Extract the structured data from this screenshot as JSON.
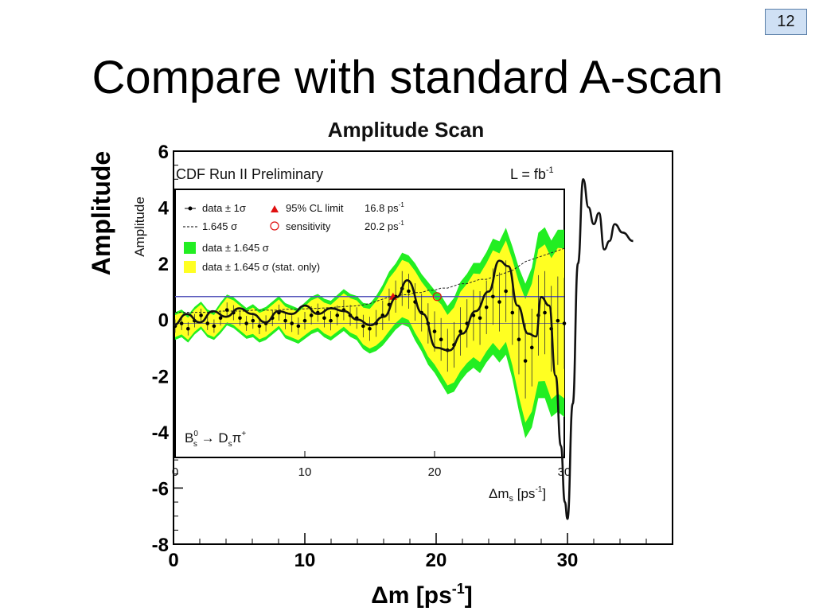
{
  "slide": {
    "page_number": "12",
    "title": "Compare with standard A-scan"
  },
  "chart_data": [
    {
      "type": "line",
      "title": "Amplitude Scan",
      "ylabel": "Amplitude",
      "xlabel_prefix": "Δm [ps",
      "xlabel_sup": "-1",
      "xlabel_suffix": "]",
      "xlim": [
        0,
        38
      ],
      "ylim": [
        -8,
        6
      ],
      "x_ticks": [
        "0",
        "10",
        "20",
        "30"
      ],
      "y_ticks": [
        "6",
        "4",
        "2",
        "0",
        "-2",
        "-4",
        "-6",
        "-8"
      ],
      "series": [
        {
          "color": "#111111",
          "x": [
            0,
            1,
            2,
            3,
            4,
            5,
            6,
            7,
            8,
            9,
            10,
            11,
            12,
            13,
            14,
            15,
            16,
            17,
            17.8,
            19,
            20,
            21,
            22,
            23,
            24,
            24.8,
            25.5,
            26.2,
            27,
            27.6,
            28,
            28.6,
            29.1,
            29.5,
            29.8,
            30,
            30.4,
            30.8,
            31.2,
            31.6,
            32,
            32.4,
            32.8,
            33.2,
            33.6,
            34.2,
            35
          ],
          "y": [
            -0.2,
            0.2,
            -0.1,
            0.3,
            0.1,
            0.4,
            0.2,
            -0.1,
            0.3,
            0.2,
            0.5,
            0.2,
            0.4,
            0.3,
            0.0,
            -0.2,
            0.1,
            0.8,
            1.4,
            0.2,
            -1.0,
            -1.1,
            -0.5,
            0.3,
            1.0,
            2.1,
            1.9,
            0.5,
            -0.5,
            -0.6,
            0.8,
            0.5,
            -2.0,
            -4.5,
            -6.5,
            -7.1,
            -3.0,
            2.0,
            5.0,
            4.0,
            3.4,
            3.8,
            2.5,
            2.8,
            3.4,
            3.1,
            2.8
          ]
        }
      ]
    },
    {
      "type": "scatter",
      "header_left": "CDF Run II Preliminary",
      "header_right_prefix": "L = fb",
      "header_right_sup": "-1",
      "ylabel": "Amplitude",
      "xlabel_prefix": "Δm",
      "xlabel_sub": "s",
      "xlabel_mid": " [ps",
      "xlabel_sup": "-1",
      "xlabel_suffix": "]",
      "xlim": [
        0,
        30
      ],
      "ylim": [
        -5,
        5
      ],
      "x_ticks": [
        "0",
        "10",
        "20",
        "30"
      ],
      "reference_line": 1,
      "annotation": {
        "text": "B",
        "sup": "0",
        "sub": "s",
        "arrow": " → D",
        "sub2": "s",
        "tail": "π",
        "sup2": "+"
      },
      "legend": {
        "placement": "top-left",
        "entries": [
          {
            "label": "data ± 1σ",
            "symbol": "dot"
          },
          {
            "label": "95% CL limit",
            "value": "16.8 ps",
            "sup": "-1",
            "symbol": "triangle",
            "color": "#e01010"
          },
          {
            "label": "1.645 σ",
            "symbol": "dashed"
          },
          {
            "label": "sensitivity",
            "value": "20.2 ps",
            "sup": "-1",
            "symbol": "circle",
            "color": "#e01010"
          },
          {
            "label": "data ± 1.645 σ",
            "symbol": "box",
            "color": "#22ee22"
          },
          {
            "label": "data ± 1.645 σ (stat. only)",
            "symbol": "box",
            "color": "#ffff22"
          }
        ]
      },
      "band_colors": {
        "outer": "#22ee22",
        "inner": "#ffff22",
        "reference": "#5555bb"
      },
      "limit_marker": {
        "x": 16.8,
        "y": 1
      },
      "sensitivity_marker": {
        "x": 20.2,
        "y": 1
      },
      "series": [
        {
          "name": "data ± 1σ",
          "x": [
            0,
            0.5,
            1,
            1.5,
            2,
            2.5,
            3,
            3.5,
            4,
            4.5,
            5,
            5.5,
            6,
            6.5,
            7,
            7.5,
            8,
            8.5,
            9,
            9.5,
            10,
            10.5,
            11,
            11.5,
            12,
            12.5,
            13,
            13.5,
            14,
            14.5,
            15,
            15.5,
            16,
            16.5,
            17,
            17.5,
            18,
            18.5,
            19,
            19.5,
            20,
            20.5,
            21,
            21.5,
            22,
            22.5,
            23,
            23.5,
            24,
            24.5,
            25,
            25.5,
            26,
            26.5,
            27,
            27.5,
            28,
            28.5,
            29,
            29.5,
            30
          ],
          "y": [
            -0.1,
            0.0,
            -0.2,
            0.1,
            0.3,
            0.0,
            -0.1,
            0.2,
            0.5,
            0.4,
            0.2,
            0.0,
            0.1,
            -0.1,
            0.0,
            0.2,
            0.4,
            0.1,
            0.0,
            -0.1,
            0.1,
            0.3,
            0.4,
            0.2,
            0.1,
            0.3,
            0.5,
            0.3,
            0.2,
            -0.1,
            -0.2,
            0.0,
            0.3,
            0.7,
            1.0,
            1.3,
            1.2,
            0.8,
            0.4,
            0.0,
            -0.3,
            -0.6,
            -1.0,
            -0.8,
            -0.3,
            0.0,
            0.3,
            0.2,
            0.6,
            1.0,
            0.8,
            1.2,
            0.4,
            -0.6,
            -1.4,
            -0.9,
            0.3,
            0.4,
            -0.2,
            0.1,
            0.0
          ],
          "error": [
            0.25,
            0.25,
            0.25,
            0.25,
            0.25,
            0.25,
            0.25,
            0.28,
            0.28,
            0.28,
            0.28,
            0.28,
            0.3,
            0.3,
            0.3,
            0.3,
            0.3,
            0.32,
            0.32,
            0.32,
            0.33,
            0.34,
            0.34,
            0.35,
            0.36,
            0.37,
            0.38,
            0.39,
            0.4,
            0.42,
            0.45,
            0.5,
            0.55,
            0.6,
            0.6,
            0.65,
            0.65,
            0.7,
            0.7,
            0.75,
            0.75,
            0.8,
            0.8,
            0.85,
            0.9,
            0.9,
            0.95,
            1.0,
            1.0,
            1.05,
            1.1,
            1.15,
            1.2,
            1.3,
            1.4,
            1.45,
            1.5,
            1.55,
            1.6,
            1.65,
            1.7
          ]
        }
      ]
    }
  ]
}
